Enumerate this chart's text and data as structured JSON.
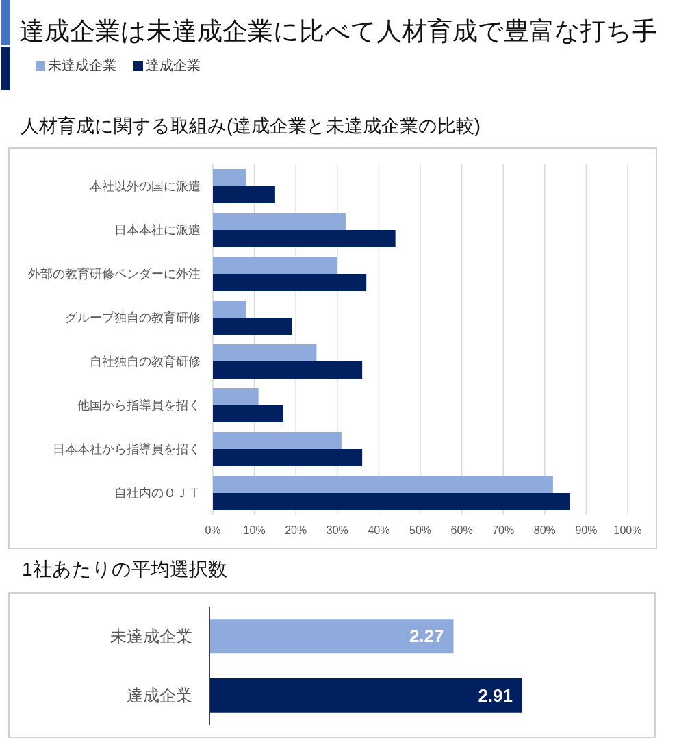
{
  "chart_data": [
    {
      "type": "bar",
      "title": "達成企業は未達成企業に比べて人材育成で豊富な打ち手",
      "subtitle": "人材育成に関する取組み(達成企業と未達成企業の比較)",
      "orientation": "horizontal",
      "categories": [
        "本社以外の国に派遣",
        "日本本社に派遣",
        "外部の教育研修ベンダーに外注",
        "グループ独自の教育研修",
        "自社独自の教育研修",
        "他国から指導員を招く",
        "日本本社から指導員を招く",
        "自社内のＯＪＴ"
      ],
      "series": [
        {
          "name": "未達成企業",
          "color": "#8faadc",
          "values": [
            8,
            32,
            30,
            8,
            25,
            11,
            31,
            82
          ]
        },
        {
          "name": "達成企業",
          "color": "#002060",
          "values": [
            15,
            44,
            37,
            19,
            36,
            17,
            36,
            86
          ]
        }
      ],
      "xlim": [
        0,
        100
      ],
      "xticks": [
        {
          "value": 0,
          "label": "0%"
        },
        {
          "value": 10,
          "label": "10%"
        },
        {
          "value": 20,
          "label": "20%"
        },
        {
          "value": 30,
          "label": "30%"
        },
        {
          "value": 40,
          "label": "40%"
        },
        {
          "value": 50,
          "label": "50%"
        },
        {
          "value": 60,
          "label": "60%"
        },
        {
          "value": 70,
          "label": "70%"
        },
        {
          "value": 80,
          "label": "80%"
        },
        {
          "value": 90,
          "label": "90%"
        },
        {
          "value": 100,
          "label": "100%"
        }
      ],
      "grid": "x",
      "legend": "top left"
    },
    {
      "type": "bar",
      "title": "1社あたりの平均選択数",
      "orientation": "horizontal",
      "categories": [
        "未達成企業",
        "達成企業"
      ],
      "values": [
        2.27,
        2.91
      ],
      "colors": [
        "#8faadc",
        "#002060"
      ],
      "data_labels": true,
      "tick_labels": "y"
    }
  ]
}
